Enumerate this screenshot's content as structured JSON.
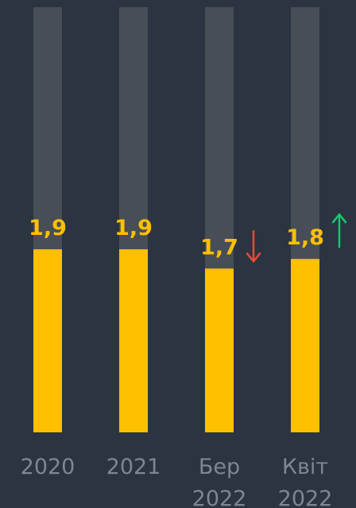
{
  "chart_data": {
    "type": "bar",
    "categories": [
      "2020",
      "2021",
      "Бер 2022",
      "Квіт 2022"
    ],
    "category_labels": [
      [
        "2020"
      ],
      [
        "2021"
      ],
      [
        "Бер",
        "2022"
      ],
      [
        "Квіт",
        "2022"
      ]
    ],
    "values": [
      1.9,
      1.9,
      1.7,
      1.8
    ],
    "value_labels": [
      "1,9",
      "1,9",
      "1,7",
      "1,8"
    ],
    "trend_arrows": [
      null,
      null,
      "down",
      "up"
    ],
    "colors": {
      "background": "#2b3440",
      "track": "#474e57",
      "bar": "#ffc000",
      "value_label": "#ffc000",
      "category_label": "#7e8790",
      "arrow_down": "#e54a3a",
      "arrow_up": "#19c66f"
    },
    "title": "",
    "xlabel": "",
    "ylabel": "",
    "grid": false,
    "legend": false
  }
}
